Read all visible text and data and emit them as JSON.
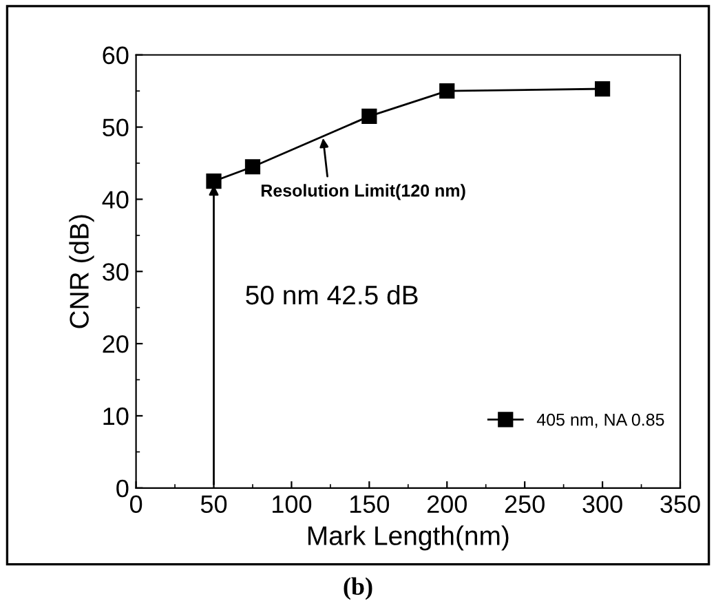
{
  "chart_data": {
    "type": "line",
    "xlabel": "Mark Length(nm)",
    "ylabel": "CNR (dB)",
    "x": [
      50,
      75,
      150,
      200,
      300
    ],
    "series": [
      {
        "name": "405 nm, NA 0.85",
        "color": "#000000",
        "values": [
          42.5,
          44.5,
          51.5,
          55,
          55.3
        ]
      }
    ],
    "xlim": [
      0,
      350
    ],
    "ylim": [
      0,
      60
    ],
    "xticks": [
      0,
      50,
      100,
      150,
      200,
      250,
      300,
      350
    ],
    "yticks": [
      0,
      10,
      20,
      30,
      40,
      50,
      60
    ],
    "marker": "square",
    "line_style": "solid",
    "grid": false,
    "legend": "bottom right",
    "annotations": [
      {
        "text": "Resolution Limit(120 nm)",
        "x": 120,
        "y": 49
      },
      "50 nm 42.5 dB",
      "(b)"
    ]
  }
}
